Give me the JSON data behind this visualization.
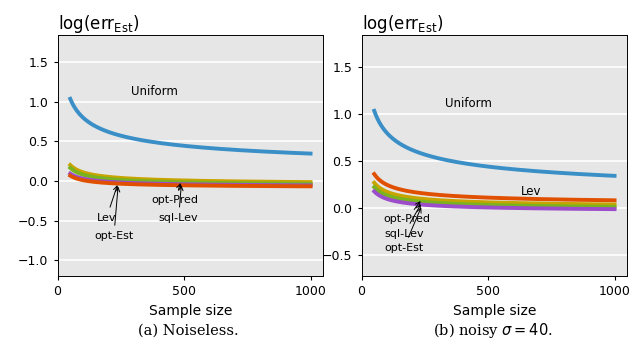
{
  "xlabel": "Sample size",
  "caption_left": "(a) Noiseless.",
  "caption_right": "(b) noisy $\\sigma = 40$.",
  "x_start": 50,
  "x_end": 1000,
  "n_points": 300,
  "ylim_left": [
    -1.2,
    1.85
  ],
  "ylim_right": [
    -0.72,
    1.85
  ],
  "yticks_left": [
    -1.0,
    -0.5,
    0.0,
    0.5,
    1.0,
    1.5
  ],
  "yticks_right": [
    -0.5,
    0.0,
    0.5,
    1.0,
    1.5
  ],
  "xticks": [
    0,
    500,
    1000
  ],
  "xlim": [
    0,
    1050
  ],
  "bg_color": "#e6e6e6",
  "lw": 2.8,
  "color_uniform": "#3a8fc7",
  "color_lev_left": "#9b4dca",
  "color_sqlev_left": "#7ab320",
  "color_optpred_left": "#c8a400",
  "color_optest_left": "#e05000",
  "color_lev_right": "#e05000",
  "color_sqlev_right": "#7ab320",
  "color_optpred_right": "#c8a400",
  "color_optest_right": "#9b4dca"
}
